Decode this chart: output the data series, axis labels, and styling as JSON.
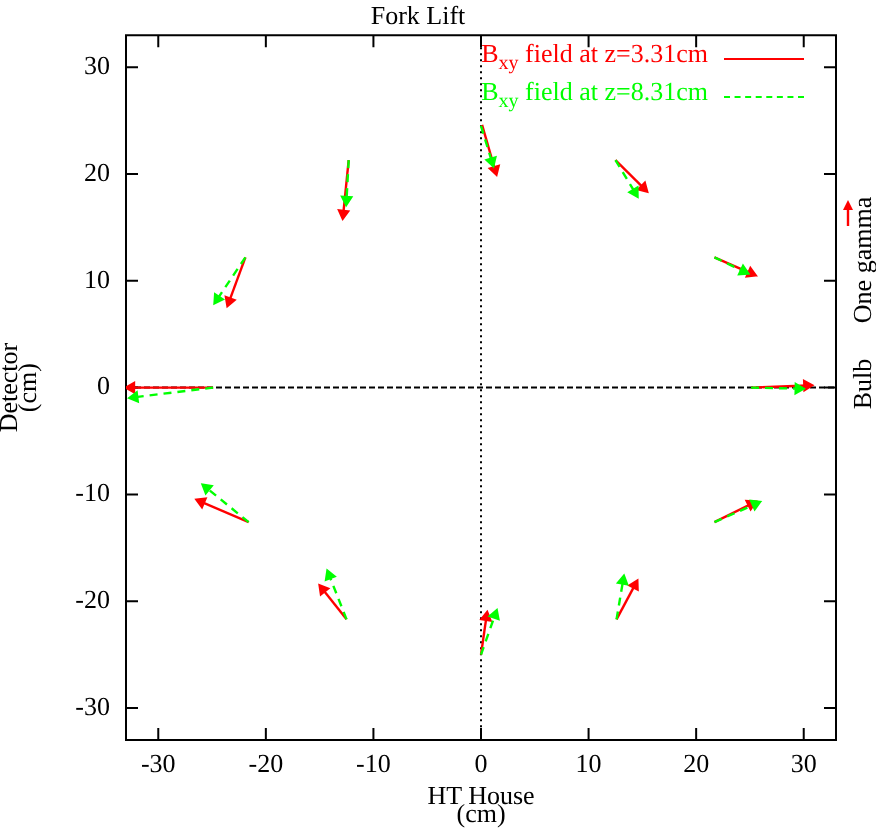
{
  "chart_data": {
    "type": "line",
    "title": "Fork Lift",
    "xlabel": "HT House\n(cm)",
    "ylabel": "Detector\n(cm)",
    "xlim": [
      -33,
      33
    ],
    "ylim": [
      -33,
      33
    ],
    "xticks": [
      -30,
      -20,
      -10,
      0,
      10,
      20,
      30
    ],
    "yticks": [
      -30,
      -20,
      -10,
      0,
      10,
      20,
      30
    ],
    "grid": false,
    "legend": "top right",
    "marker": "triangle",
    "ref_lines": [
      {
        "axis": "x",
        "value": 0,
        "color": "#000000",
        "line_style": "dotted"
      },
      {
        "axis": "y",
        "value": 0,
        "color": "#000000",
        "line_style": "dashed"
      }
    ],
    "annotations": [
      "Bulb",
      "One gamma"
    ],
    "series": [
      {
        "name": "B$_{xy}$ field at z=3.31cm",
        "color": "#ff0000",
        "line_style": "solid",
        "x": [
          0.1,
          1.3
        ],
        "values": [
          24.6,
          20.4
        ]
      },
      {
        "color": "#ff0000",
        "line_style": "solid",
        "x": [
          -12.3,
          -12.8
        ],
        "values": [
          21.3,
          16.3
        ]
      },
      {
        "color": "#ff0000",
        "line_style": "solid",
        "x": [
          12.5,
          15.1
        ],
        "values": [
          21.3,
          18.7
        ]
      },
      {
        "color": "#ff0000",
        "line_style": "solid",
        "x": [
          21.7,
          25.1
        ],
        "values": [
          12.2,
          10.7
        ]
      },
      {
        "color": "#ff0000",
        "line_style": "solid",
        "x": [
          25.1,
          30.3
        ],
        "values": [
          0,
          0.2
        ]
      },
      {
        "color": "#ff0000",
        "line_style": "solid",
        "x": [
          21.7,
          25.1
        ],
        "values": [
          -12.6,
          -10.9
        ]
      },
      {
        "color": "#ff0000",
        "line_style": "solid",
        "x": [
          12.6,
          14.3
        ],
        "values": [
          -21.7,
          -18.5
        ]
      },
      {
        "color": "#ff0000",
        "line_style": "solid",
        "x": [
          0,
          0.5
        ],
        "values": [
          -25,
          -21.5
        ]
      },
      {
        "color": "#ff0000",
        "line_style": "solid",
        "x": [
          -12.5,
          -14.7
        ],
        "values": [
          -21.7,
          -18.9
        ]
      },
      {
        "color": "#ff0000",
        "line_style": "solid",
        "x": [
          -21.6,
          -26
        ],
        "values": [
          -12.6,
          -10.7
        ]
      },
      {
        "color": "#ff0000",
        "line_style": "solid",
        "x": [
          -24.9,
          -32.5
        ],
        "values": [
          0,
          0
        ]
      },
      {
        "color": "#ff0000",
        "line_style": "solid",
        "x": [
          -21.9,
          -23.4
        ],
        "values": [
          12.2,
          8.1
        ]
      },
      {
        "name": "B$_{xy}$ field at z=8.31cm",
        "color": "#00ff00",
        "line_style": "dashed",
        "x": [
          0,
          1
        ],
        "values": [
          24.5,
          21.2
        ]
      },
      {
        "color": "#00ff00",
        "line_style": "dashed",
        "x": [
          -12.3,
          -12.5
        ],
        "values": [
          21.3,
          17.6
        ]
      },
      {
        "color": "#00ff00",
        "line_style": "dashed",
        "x": [
          12.5,
          14.3
        ],
        "values": [
          21.3,
          18.3
        ]
      },
      {
        "color": "#00ff00",
        "line_style": "dashed",
        "x": [
          21.7,
          24.4
        ],
        "values": [
          12.2,
          10.9
        ]
      },
      {
        "color": "#00ff00",
        "line_style": "dashed",
        "x": [
          25.1,
          29.5
        ],
        "values": [
          0,
          -0.1
        ]
      },
      {
        "color": "#00ff00",
        "line_style": "dashed",
        "x": [
          21.7,
          25.5
        ],
        "values": [
          -12.6,
          -10.9
        ]
      },
      {
        "color": "#00ff00",
        "line_style": "dashed",
        "x": [
          12.6,
          13.2
        ],
        "values": [
          -21.7,
          -18.1
        ]
      },
      {
        "color": "#00ff00",
        "line_style": "dashed",
        "x": [
          0,
          1.3
        ],
        "values": [
          -25,
          -21.3
        ]
      },
      {
        "color": "#00ff00",
        "line_style": "dashed",
        "x": [
          -12.5,
          -14.1
        ],
        "values": [
          -21.7,
          -17.6
        ]
      },
      {
        "color": "#00ff00",
        "line_style": "dashed",
        "x": [
          -21.6,
          -25.5
        ],
        "values": [
          -12.6,
          -9.4
        ]
      },
      {
        "color": "#00ff00",
        "line_style": "dashed",
        "x": [
          -24.9,
          -32.2
        ],
        "values": [
          0,
          -0.9
        ]
      },
      {
        "color": "#00ff00",
        "line_style": "dashed",
        "x": [
          -21.9,
          -24.5
        ],
        "values": [
          12.2,
          8.3
        ]
      }
    ]
  }
}
